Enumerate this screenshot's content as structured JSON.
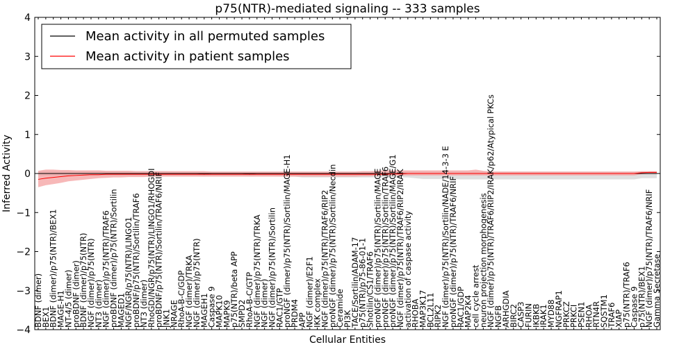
{
  "chart_data": {
    "type": "line",
    "title": "p75(NTR)-mediated signaling -- 333 samples",
    "xlabel": "Cellular Entities",
    "ylabel": "Inferred Activity",
    "ylim": [
      -4,
      4
    ],
    "yticks": [
      -4,
      -3,
      -2,
      -1,
      0,
      1,
      2,
      3,
      4
    ],
    "legend_position": "top-left",
    "colors": {
      "permuted_line": "#000000",
      "permuted_band": "#d4d4d4",
      "patient_line": "#ff0000",
      "patient_band": "#f4a0a0"
    },
    "categories": [
      "BDNF (dimer)",
      "BEX1",
      "BDNF (dimer)/p75(NTR)/BEX1",
      "MAGE-H1",
      "NT-4/5 (dimer)",
      "proBDNF (dimer)",
      "BDNF (dimer)/p75(NTR)",
      "NGF (dimer)/p75(NTR)",
      "NT3 (dimer)",
      "NGF (dimer)/p75(NTR)/TRAF6",
      "proBDNF (dimer)/p75(NTR)/Sortilin",
      "MAGED1",
      "NGF/NGR/p75(NTR)/LINGO1",
      "proBDNF/p75(NTR)/Sortilin/TRAF6",
      "NT3 (dimer)",
      "RhoGDI/NGR/p75(NTR)/LINGO1/RHOGDI",
      "proBDNF/p75(NTR)/Sortilin/TRAF6/NRIF",
      "JNK1",
      "NRAGE",
      "RhoA-B-C/GDP",
      "NGF (dimer)/TRKA",
      "NGF (dimer)/p75(NTR)",
      "MAGEH1",
      "Caspase 9",
      "MAPK10",
      "MAPK9",
      "p75(NTR)/beta APP",
      "SMPD2",
      "RhoA-B-C/GTP",
      "NGF (dimer)/p75(NTR)/TRKA",
      "NGF (dimer)",
      "NGF (dimer)/p75(NTR)/Sortilin",
      "RAC1/GTP",
      "proNGF (dimer)/p75(NTR)/Sortilin/MAGE-H1",
      "PRDM4",
      "APP",
      "NGF (dimer)/E2F1",
      "IKK complex",
      "NGF (dimer)/p75(NTR)/TRAF6/RIP2",
      "proNGF (dimer)/p75(NTR)/Sortilin/Necdin",
      "Ceramide",
      "PI3K",
      "TACE/Sortilin/ADAM-17",
      "p75(NTR)/p75-86-01-1",
      "Shotilin/CS1/TRAF6",
      "proNGF (dimer)/p75(NTR)/Sortilin/MAGE",
      "proNGF (dimer)/p75(NTR)/Sortilin/TRAF6",
      "proNGF (dimer)/p75(NTR)/Sortilin/MAGE/G1",
      "NGF (dimer)/p75(NTR)/TRAF6/RIP2/IRAK",
      "activation of caspase activity",
      "RHOBA",
      "MAP3K17",
      "BCL2L11",
      "RIPK2",
      "NGF (dimer)/p75(NTR)/Sortilin/NADE/14-3-3 E",
      "proNGF (dimer)/p75(NTR)/TRAF6/NRIF",
      "RAC1/GDP",
      "MAP2K4",
      "cell cycle arrest",
      "neuron projection morphogenesis",
      "NGF (dimer)/p75(NTR)/TRAF6/RIP2/IRAK/p62/Atypical PKCs",
      "NGFB",
      "ARHGDIA",
      "BIRC2",
      "CASP3",
      "FURIN",
      "IKBKB",
      "IRAK1",
      "MYD88",
      "NGFRAP1",
      "PRKCZ",
      "PRKCI",
      "PSEN1",
      "RHOA",
      "RTN4R",
      "SQSTM1",
      "TRAF6",
      "XIAP",
      "p75(NTR)/TRAF6",
      "Caspase 9",
      "p75(NTR)/BEX1",
      "NGF (dimer)/p75(NTR)/TRAF6/NRIF",
      "Gamma Secretase"
    ],
    "series": [
      {
        "name": "Mean activity in all permuted samples",
        "mean": [
          0.0,
          0.0,
          0.0,
          0.0,
          0.0,
          0.0,
          0.0,
          0.0,
          0.0,
          0.0,
          0.0,
          0.0,
          0.0,
          0.0,
          0.0,
          0.0,
          0.0,
          0.0,
          0.0,
          0.0,
          0.0,
          0.0,
          -0.02,
          0.0,
          0.0,
          0.0,
          0.0,
          0.0,
          -0.02,
          0.0,
          0.0,
          0.0,
          0.0,
          0.0,
          0.0,
          0.0,
          0.0,
          0.0,
          0.0,
          0.0,
          0.0,
          0.0,
          0.0,
          0.0,
          0.0,
          0.0,
          0.0,
          0.0,
          0.0,
          0.0,
          0.0,
          0.0,
          0.0,
          0.0,
          0.0,
          0.0,
          0.0,
          0.0,
          0.0,
          0.0,
          0.0,
          0.0,
          0.0,
          0.0,
          0.0,
          0.0,
          0.0,
          0.0,
          0.0,
          0.0,
          0.0,
          0.0,
          0.0,
          0.0,
          0.0,
          0.0,
          0.0,
          0.0,
          0.0,
          0.0,
          0.0,
          0.0,
          0.0
        ],
        "upper": [
          0.06,
          0.06,
          0.06,
          0.06,
          0.06,
          0.06,
          0.06,
          0.06,
          0.06,
          0.06,
          0.06,
          0.06,
          0.06,
          0.06,
          0.06,
          0.06,
          0.06,
          0.06,
          0.05,
          0.05,
          0.05,
          0.05,
          0.05,
          0.05,
          0.05,
          0.05,
          0.05,
          0.05,
          0.05,
          0.05,
          0.05,
          0.05,
          0.05,
          0.05,
          0.05,
          0.05,
          0.05,
          0.05,
          0.05,
          0.05,
          0.05,
          0.05,
          0.05,
          0.05,
          0.05,
          0.05,
          0.05,
          0.05,
          0.05,
          0.05,
          0.05,
          0.05,
          0.05,
          0.05,
          0.05,
          0.05,
          0.05,
          0.05,
          0.05,
          0.05,
          0.05,
          0.05,
          0.05,
          0.05,
          0.05,
          0.05,
          0.05,
          0.05,
          0.05,
          0.05,
          0.05,
          0.05,
          0.05,
          0.05,
          0.05,
          0.05,
          0.05,
          0.05,
          0.05,
          0.05,
          0.05,
          0.05,
          0.05
        ],
        "lower": [
          -0.06,
          -0.06,
          -0.06,
          -0.06,
          -0.06,
          -0.06,
          -0.06,
          -0.06,
          -0.06,
          -0.06,
          -0.06,
          -0.06,
          -0.06,
          -0.06,
          -0.06,
          -0.06,
          -0.06,
          -0.06,
          -0.06,
          -0.06,
          -0.06,
          -0.06,
          -0.07,
          -0.06,
          -0.06,
          -0.06,
          -0.06,
          -0.06,
          -0.07,
          -0.06,
          -0.06,
          -0.06,
          -0.07,
          -0.07,
          -0.08,
          -0.1,
          -0.1,
          -0.1,
          -0.1,
          -0.1,
          -0.1,
          -0.1,
          -0.1,
          -0.1,
          -0.1,
          -0.1,
          -0.1,
          -0.1,
          -0.1,
          -0.1,
          -0.12,
          -0.14,
          -0.14,
          -0.14,
          -0.14,
          -0.14,
          -0.15,
          -0.15,
          -0.15,
          -0.15,
          -0.15,
          -0.15,
          -0.15,
          -0.15,
          -0.15,
          -0.15,
          -0.15,
          -0.15,
          -0.15,
          -0.15,
          -0.15,
          -0.15,
          -0.15,
          -0.15,
          -0.15,
          -0.15,
          -0.15,
          -0.15,
          -0.15,
          -0.15,
          -0.12,
          -0.12,
          -0.12
        ]
      },
      {
        "name": "Mean activity in patient samples",
        "mean": [
          -0.15,
          -0.12,
          -0.1,
          -0.08,
          -0.06,
          -0.05,
          -0.04,
          -0.03,
          -0.03,
          -0.02,
          -0.02,
          -0.02,
          -0.02,
          -0.02,
          -0.02,
          -0.02,
          -0.02,
          -0.02,
          -0.02,
          -0.02,
          -0.02,
          -0.02,
          -0.02,
          -0.02,
          -0.02,
          -0.02,
          -0.02,
          -0.02,
          -0.02,
          -0.02,
          -0.02,
          -0.02,
          -0.02,
          -0.02,
          -0.02,
          -0.02,
          -0.02,
          -0.02,
          -0.02,
          -0.02,
          -0.02,
          -0.02,
          -0.02,
          -0.02,
          -0.02,
          -0.02,
          -0.02,
          -0.01,
          -0.01,
          0.0,
          0.0,
          0.0,
          0.0,
          0.0,
          0.0,
          0.0,
          0.0,
          0.0,
          0.0,
          0.0,
          0.0,
          0.0,
          0.0,
          0.0,
          0.0,
          0.0,
          0.0,
          0.0,
          0.0,
          0.0,
          0.0,
          0.0,
          0.0,
          0.0,
          0.0,
          0.0,
          0.0,
          0.0,
          0.0,
          0.0,
          0.02,
          0.03,
          0.03
        ],
        "upper": [
          0.07,
          0.1,
          0.1,
          0.09,
          0.09,
          0.08,
          0.08,
          0.08,
          0.08,
          0.07,
          0.07,
          0.07,
          0.07,
          0.06,
          0.06,
          0.06,
          0.06,
          0.06,
          0.06,
          0.06,
          0.06,
          0.06,
          0.06,
          0.05,
          0.05,
          0.05,
          0.05,
          0.05,
          0.05,
          0.05,
          0.05,
          0.05,
          0.05,
          0.05,
          0.05,
          0.05,
          0.05,
          0.05,
          0.05,
          0.05,
          0.05,
          0.05,
          0.05,
          0.06,
          0.06,
          0.07,
          0.08,
          0.08,
          0.08,
          0.08,
          0.08,
          0.08,
          0.08,
          0.08,
          0.08,
          0.08,
          0.08,
          0.08,
          0.1,
          0.07,
          0.05,
          0.05,
          0.05,
          0.05,
          0.05,
          0.05,
          0.05,
          0.05,
          0.05,
          0.05,
          0.05,
          0.05,
          0.05,
          0.05,
          0.05,
          0.05,
          0.05,
          0.05,
          0.05,
          0.05,
          0.06,
          0.06,
          0.06
        ],
        "lower": [
          -0.35,
          -0.3,
          -0.27,
          -0.24,
          -0.2,
          -0.18,
          -0.16,
          -0.14,
          -0.12,
          -0.11,
          -0.1,
          -0.1,
          -0.09,
          -0.09,
          -0.09,
          -0.08,
          -0.08,
          -0.08,
          -0.08,
          -0.08,
          -0.08,
          -0.08,
          -0.08,
          -0.08,
          -0.08,
          -0.08,
          -0.08,
          -0.08,
          -0.08,
          -0.08,
          -0.08,
          -0.08,
          -0.08,
          -0.08,
          -0.08,
          -0.08,
          -0.08,
          -0.08,
          -0.08,
          -0.08,
          -0.08,
          -0.08,
          -0.08,
          -0.07,
          -0.07,
          -0.06,
          -0.05,
          -0.05,
          -0.05,
          -0.05,
          -0.05,
          -0.05,
          -0.05,
          -0.05,
          -0.05,
          -0.05,
          -0.05,
          -0.05,
          -0.05,
          -0.05,
          -0.05,
          -0.05,
          -0.05,
          -0.05,
          -0.05,
          -0.05,
          -0.05,
          -0.05,
          -0.05,
          -0.05,
          -0.05,
          -0.05,
          -0.05,
          -0.05,
          -0.05,
          -0.05,
          -0.05,
          -0.05,
          -0.05,
          -0.05,
          -0.02,
          -0.01,
          -0.01
        ]
      }
    ]
  }
}
